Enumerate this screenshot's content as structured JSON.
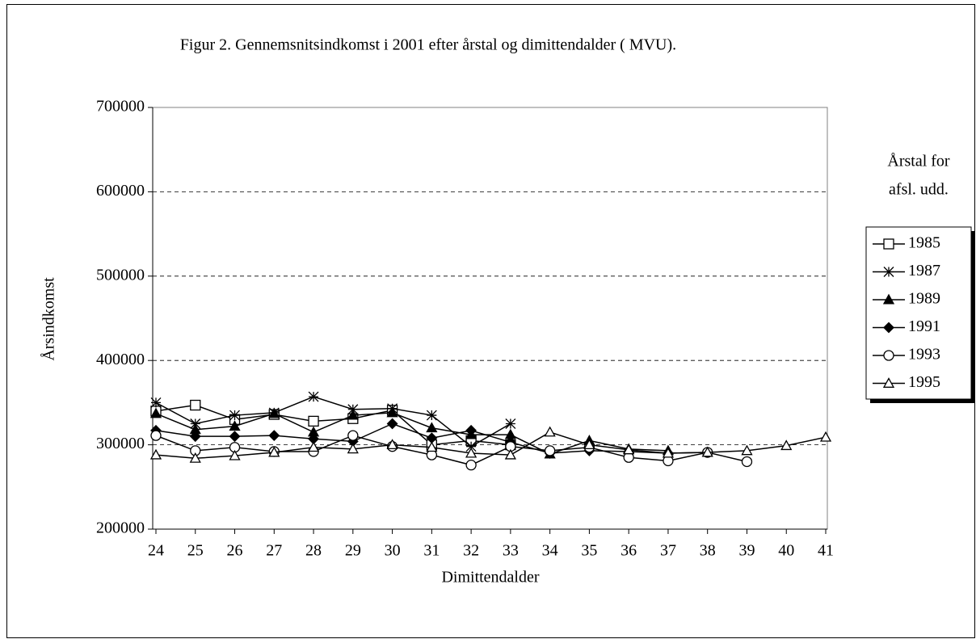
{
  "chart_data": {
    "type": "line",
    "title": "Figur 2. Gennemsnitsindkomst i 2001 efter årstal og dimittendalder ( MVU).",
    "x_label": "Dimittendalder",
    "y_label": "Årsindkomst",
    "legend_title": [
      "Årstal for",
      "afsl. udd."
    ],
    "legend_position": "right",
    "grid": true,
    "x": [
      24,
      25,
      26,
      27,
      28,
      29,
      30,
      31,
      32,
      33,
      34,
      35,
      36,
      37,
      38,
      39,
      40,
      41
    ],
    "xlim": [
      24,
      41
    ],
    "xticks": [
      24,
      25,
      26,
      27,
      28,
      29,
      30,
      31,
      32,
      33,
      34,
      35,
      36,
      37,
      38,
      39,
      40,
      41
    ],
    "ylim": [
      200000,
      700000
    ],
    "yticks": [
      200000,
      300000,
      400000,
      500000,
      600000,
      700000
    ],
    "series": [
      {
        "name": "1985",
        "color": "#000000",
        "marker": "square",
        "values": [
          340000,
          347000,
          330000,
          336000,
          328000,
          331000,
          341000,
          300000,
          305000,
          300000,
          null,
          null,
          null,
          null,
          null,
          null,
          null,
          null
        ]
      },
      {
        "name": "1987",
        "color": "#000000",
        "marker": "star",
        "values": [
          350000,
          325000,
          335000,
          338000,
          357000,
          342000,
          343000,
          335000,
          298000,
          325000,
          null,
          null,
          null,
          null,
          null,
          null,
          null,
          null
        ]
      },
      {
        "name": "1989",
        "color": "#000000",
        "marker": "triangle-filled",
        "values": [
          337000,
          318000,
          322000,
          337000,
          315000,
          335000,
          338000,
          320000,
          312000,
          312000,
          289000,
          305000,
          295000,
          293000,
          null,
          null,
          null,
          null
        ]
      },
      {
        "name": "1991",
        "color": "#000000",
        "marker": "diamond",
        "values": [
          317000,
          310000,
          310000,
          311000,
          307000,
          304000,
          325000,
          308000,
          317000,
          303000,
          290000,
          293000,
          292000,
          290000,
          291000,
          null,
          null,
          null
        ]
      },
      {
        "name": "1993",
        "color": "#000000",
        "marker": "circle",
        "values": [
          311000,
          293000,
          297000,
          292000,
          292000,
          311000,
          298000,
          288000,
          276000,
          298000,
          293000,
          297000,
          285000,
          281000,
          291000,
          280000,
          null,
          null
        ]
      },
      {
        "name": "1995",
        "color": "#000000",
        "marker": "triangle",
        "values": [
          288000,
          284000,
          287000,
          291000,
          297000,
          295000,
          300000,
          297000,
          290000,
          288000,
          315000,
          300000,
          294000,
          290000,
          291000,
          293000,
          299000,
          309000
        ]
      }
    ]
  }
}
